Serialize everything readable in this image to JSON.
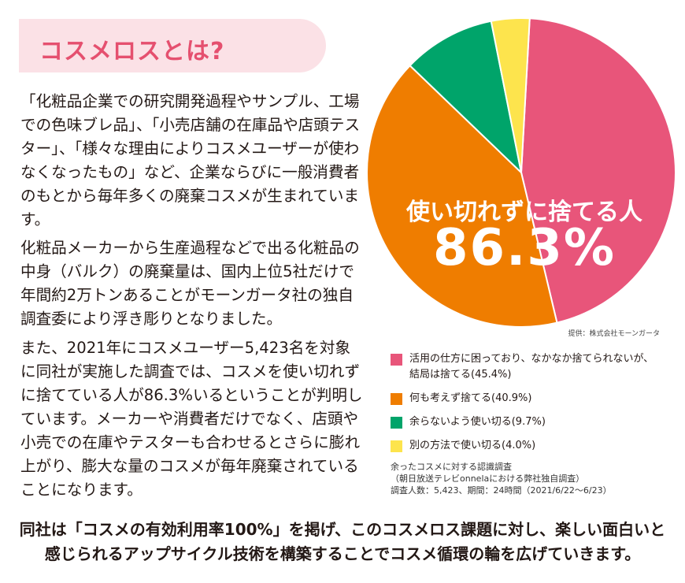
{
  "title": "コスメロスとは?",
  "paragraphs": [
    "「化粧品企業での研究開発過程やサンプル、工場での色味ブレ品」、「小売店舗の在庫品や店頭テスター」、「様々な理由によりコスメユーザーが使わなくなったもの」など、企業ならびに一般消費者のもとから毎年多くの廃棄コスメが生まれています。",
    "化粧品メーカーから生産過程などで出る化粧品の中身（バルク）の廃棄量は、国内上位5社だけで年間約2万トンあることがモーンガータ社の独自調査委により浮き彫りとなりました。",
    "また、2021年にコスメユーザー5,423名を対象に同社が実施した調査では、コスメを使い切れずに捨てている人が86.3%いるということが判明しています。メーカーや消費者だけでなく、店頭や小売での在庫やテスターも合わせるとさらに膨れ上がり、膨大な量のコスメが毎年廃棄されていることになります。"
  ],
  "footer": {
    "line1": "同社は「コスメの有効利用率100%」を掲げ、このコスメロス課題に対し、楽しい面白いと",
    "line2": "感じられるアップサイクル技術を構築することでコスメ循環の輪を広げていきます。"
  },
  "chart_data": {
    "type": "pie",
    "title": "余ったコスメに対する認識調査",
    "overlay_label": "使い切れずに捨てる人",
    "overlay_value": "86.3%",
    "slices": [
      {
        "label_line1": "活用の仕方に困っており、なかなか捨てられないが、",
        "label_line2": "結局は捨てる(45.4%)",
        "value": 45.4,
        "color": "#e8557a"
      },
      {
        "label_line1": "何も考えず捨てる(40.9%)",
        "label_line2": "",
        "value": 40.9,
        "color": "#ef7d00"
      },
      {
        "label_line1": "余らないよう使い切る(9.7%)",
        "label_line2": "",
        "value": 9.7,
        "color": "#00a46a"
      },
      {
        "label_line1": "別の方法で使い切る(4.0%)",
        "label_line2": "",
        "value": 4.0,
        "color": "#fde44d"
      }
    ],
    "credit": "提供：株式会社モーンガータ",
    "survey_lines": [
      "余ったコスメに対する認識調査",
      "（朝日放送テレビonnelaにおける弊社独自調査）",
      "調査人数：5,423、期間：24時間（2021/6/22〜6/23）"
    ]
  }
}
